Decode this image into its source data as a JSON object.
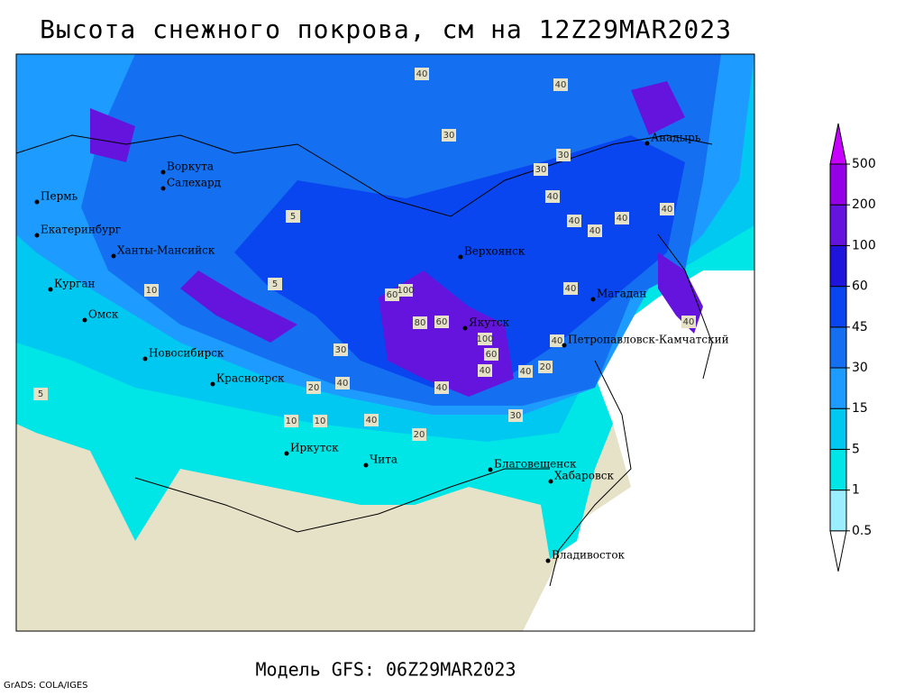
{
  "title": "Высота снежного покрова, см на 12Z29MAR2023",
  "model": "Модель GFS: 06Z29MAR2023",
  "credit": "GrADS: COLA/IGES",
  "legend": {
    "levels": [
      0.5,
      1,
      5,
      15,
      30,
      45,
      60,
      100,
      200,
      500
    ],
    "colors": [
      "#ffffff",
      "#9beeff",
      "#00e6e6",
      "#00c8f0",
      "#1e9bff",
      "#1470f0",
      "#0a46f0",
      "#1e14dc",
      "#6414dc",
      "#9600e6",
      "#c800ff"
    ]
  },
  "cities": [
    "Воркута",
    "Салехард",
    "Пермь",
    "Екатеринбург",
    "Ханты-Мансийск",
    "Курган",
    "Омск",
    "Новосибирск",
    "Красноярск",
    "Иркутск",
    "Чита",
    "Благовещенск",
    "Хабаровск",
    "Владивосток",
    "Верхоянск",
    "Якутск",
    "Магадан",
    "Петропавловск-Камчатский",
    "Анадырь"
  ],
  "contour_labels": [
    40,
    30,
    40,
    30,
    30,
    40,
    40,
    40,
    40,
    40,
    40,
    40,
    60,
    60,
    80,
    100,
    100,
    60,
    40,
    40,
    40,
    20,
    20,
    10,
    10,
    5,
    5,
    5,
    10,
    30,
    40,
    20,
    30,
    40,
    40
  ]
}
